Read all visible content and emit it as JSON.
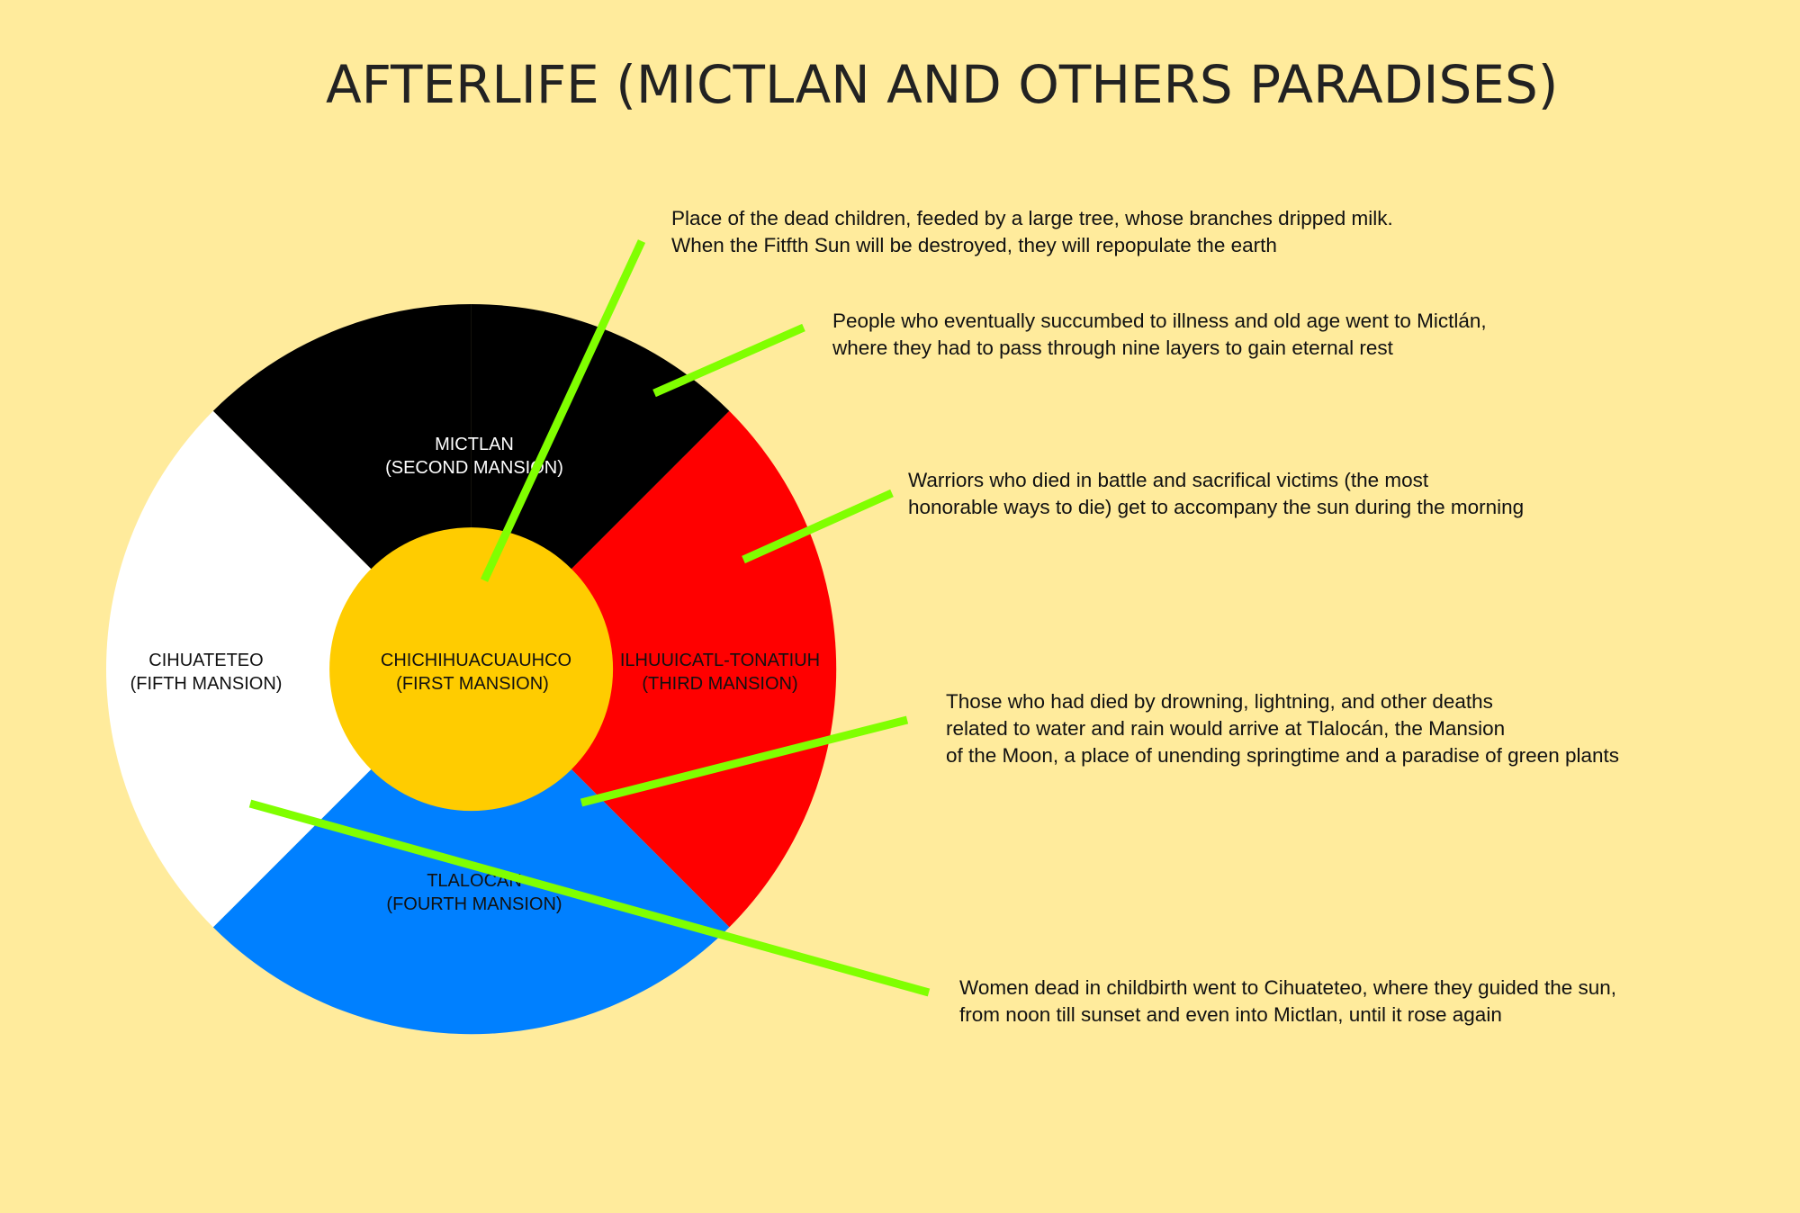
{
  "title": "AFTERLIFE (MICTLAN AND OTHERS PARADISES)",
  "colors": {
    "background": "#FFEB9C",
    "first_mansion": "#FFCC00",
    "second_mansion": "#000000",
    "third_mansion": "#FF0000",
    "fourth_mansion": "#0080FF",
    "fifth_mansion": "#FFFFFF",
    "connector": "#80FF00"
  },
  "mansions": {
    "first": {
      "name": "CHICHIHUACUAUHCO",
      "sub": "(FIRST MANSION)"
    },
    "second": {
      "name": "MICTLAN",
      "sub": "(SECOND MANSION)"
    },
    "third": {
      "name": "ILHUUICATL-TONATIUH",
      "sub": "(THIRD MANSION)"
    },
    "fourth": {
      "name": "TLALOCAN",
      "sub": "(FOURTH MANSION)"
    },
    "fifth": {
      "name": "CIHUATETEO",
      "sub": "(FIFTH MANSION)"
    }
  },
  "descriptions": {
    "first": [
      "Place of the dead children, feeded by a large tree, whose branches dripped milk.",
      "When the Fitfth Sun will be destroyed, they will repopulate the earth"
    ],
    "second": [
      "People who eventually succumbed to illness and old age went to Mictlán,",
      "where they had to pass through nine layers to gain eternal rest"
    ],
    "third": [
      "Warriors who died in battle and sacrifical victims (the most",
      "honorable ways to die) get to accompany the sun during the morning"
    ],
    "fourth": [
      "Those who had died by drowning, lightning, and other deaths",
      "related to water and rain would arrive at Tlalocán, the Mansion",
      "of the Moon, a place of unending springtime and a paradise of green plants"
    ],
    "fifth": [
      "Women dead in childbirth went to Cihuateteo, where they guided the sun,",
      "from noon till sunset and even into Mictlan, until it rose again"
    ]
  }
}
